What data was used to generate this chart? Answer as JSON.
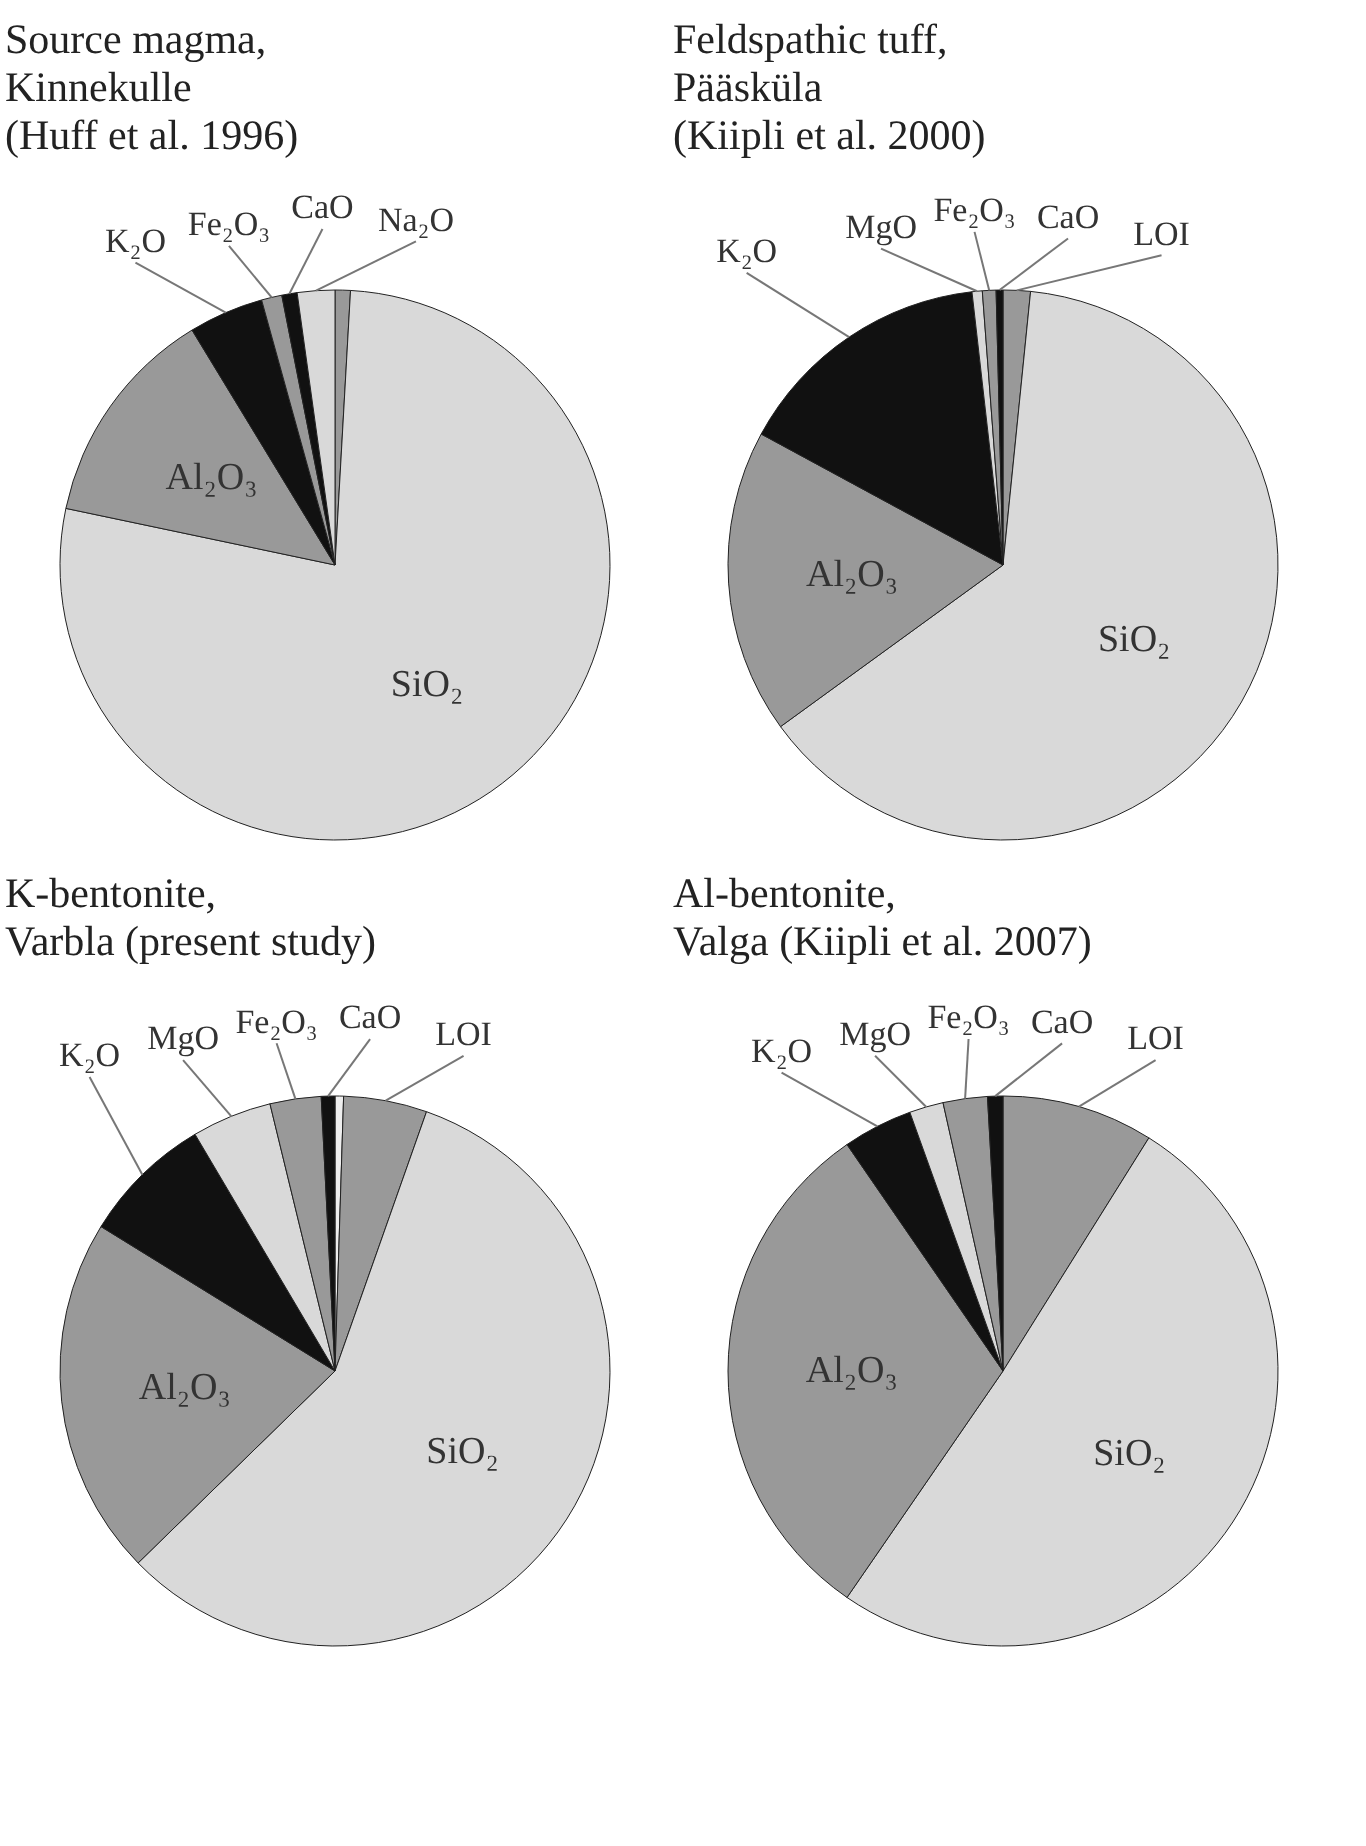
{
  "chart_data": [
    {
      "type": "pie",
      "title": "Source magma,\nKinnekulle\n(Huff et al. 1996)",
      "categories": [
        null,
        "SiO₂",
        "Al₂O₃",
        "K₂O",
        "Fe₂O₃",
        "CaO",
        "Na₂O"
      ],
      "values": [
        0.9,
        77.4,
        13,
        4.4,
        1.2,
        0.9,
        2.2
      ],
      "colors": [
        "#999999",
        "#d9d9d9",
        "#999999",
        "#111111",
        "#999999",
        "#111111",
        "#d9d9d9"
      ]
    },
    {
      "type": "pie",
      "title": "Feldspathic tuff,\nPääsküla\n(Kiipli et al. 2000)",
      "categories": [
        "LOI",
        "SiO₂",
        "Al₂O₃",
        "K₂O",
        "MgO",
        "Fe₂O₃",
        "CaO"
      ],
      "values": [
        1.6,
        63.4,
        17.9,
        15.3,
        0.6,
        0.8,
        0.4
      ],
      "colors": [
        "#999999",
        "#d9d9d9",
        "#999999",
        "#111111",
        "#d9d9d9",
        "#999999",
        "#111111"
      ]
    },
    {
      "type": "pie",
      "title": "K-bentonite,\nVarbla (present study)",
      "categories": [
        null,
        "LOI",
        "SiO₂",
        "Al₂O₃",
        "K₂O",
        "MgO",
        "Fe₂O₃",
        "CaO"
      ],
      "values": [
        0.5,
        4.9,
        57.3,
        21.1,
        7.7,
        4.7,
        3.0,
        0.8
      ],
      "colors": [
        "#eeeeee",
        "#999999",
        "#d9d9d9",
        "#999999",
        "#111111",
        "#d9d9d9",
        "#999999",
        "#111111"
      ]
    },
    {
      "type": "pie",
      "title": "Al-bentonite,\nValga (Kiipli et al. 2007)",
      "categories": [
        "LOI",
        "SiO₂",
        "Al₂O₃",
        "K₂O",
        "MgO",
        "Fe₂O₃",
        "CaO"
      ],
      "values": [
        8.9,
        50.7,
        30.8,
        4.1,
        2.0,
        2.6,
        0.9
      ],
      "colors": [
        "#999999",
        "#d9d9d9",
        "#999999",
        "#111111",
        "#d9d9d9",
        "#999999",
        "#111111"
      ]
    }
  ]
}
